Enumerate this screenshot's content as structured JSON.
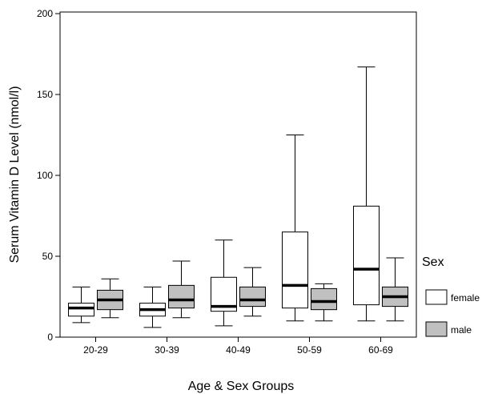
{
  "chart_data": {
    "type": "boxplot",
    "title": "",
    "xlabel": "Age & Sex Groups",
    "ylabel": "Serum Vitamin D Level (nmol/l)",
    "ylim": [
      0,
      200
    ],
    "yticks": [
      0,
      50,
      100,
      150,
      200
    ],
    "grid": false,
    "categories": [
      "20-29",
      "30-39",
      "40-49",
      "50-59",
      "60-69"
    ],
    "legend": {
      "title": "Sex",
      "placement": "right"
    },
    "series": [
      {
        "name": "female",
        "color": "#ffffff",
        "boxes": [
          {
            "min": 9,
            "q1": 13,
            "median": 18,
            "q3": 21,
            "max": 31
          },
          {
            "min": 6,
            "q1": 13,
            "median": 17,
            "q3": 21,
            "max": 31
          },
          {
            "min": 7,
            "q1": 16,
            "median": 19,
            "q3": 37,
            "max": 60
          },
          {
            "min": 10,
            "q1": 18,
            "median": 32,
            "q3": 65,
            "max": 125
          },
          {
            "min": 10,
            "q1": 20,
            "median": 42,
            "q3": 81,
            "max": 167
          }
        ]
      },
      {
        "name": "male",
        "color": "#c0c0c0",
        "boxes": [
          {
            "min": 12,
            "q1": 17,
            "median": 23,
            "q3": 29,
            "max": 36
          },
          {
            "min": 12,
            "q1": 18,
            "median": 23,
            "q3": 32,
            "max": 47
          },
          {
            "min": 13,
            "q1": 19,
            "median": 23,
            "q3": 31,
            "max": 43
          },
          {
            "min": 10,
            "q1": 17,
            "median": 22,
            "q3": 30,
            "max": 33
          },
          {
            "min": 10,
            "q1": 19,
            "median": 25,
            "q3": 31,
            "max": 49
          }
        ]
      }
    ]
  }
}
